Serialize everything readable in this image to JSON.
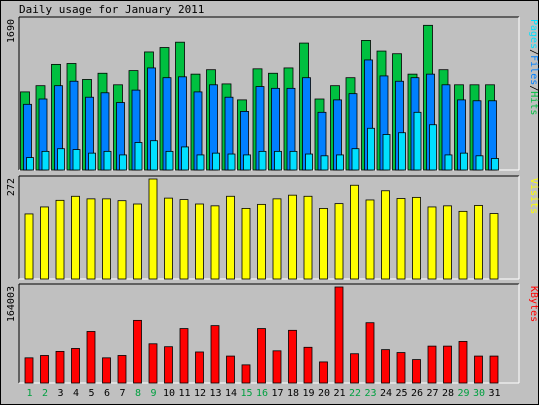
{
  "title": "Daily usage for January 2011",
  "colors": {
    "background": "#c0c0c0",
    "hits": "#00c040",
    "files": "#0080ff",
    "pages": "#00e0ff",
    "visits": "#ffff00",
    "kbytes": "#ff0000",
    "weekend_label": "#00a040"
  },
  "chart_data": [
    {
      "type": "bar",
      "ylabel_max": "1690",
      "ymax": 1690,
      "legend": [
        {
          "text": "Pages",
          "color": "#00e0ff"
        },
        {
          "text": "/",
          "color": "#000000"
        },
        {
          "text": "Files",
          "color": "#0080ff"
        },
        {
          "text": "/",
          "color": "#000000"
        },
        {
          "text": "Hits",
          "color": "#00c040"
        }
      ],
      "categories": [
        "1",
        "2",
        "3",
        "4",
        "5",
        "6",
        "7",
        "8",
        "9",
        "10",
        "11",
        "12",
        "13",
        "14",
        "15",
        "16",
        "17",
        "18",
        "19",
        "20",
        "21",
        "22",
        "23",
        "24",
        "25",
        "26",
        "27",
        "28",
        "29",
        "30",
        "31"
      ],
      "series": [
        {
          "name": "Hits",
          "values": [
            880,
            950,
            1190,
            1200,
            1020,
            1090,
            960,
            1120,
            1330,
            1380,
            1440,
            1080,
            1130,
            970,
            790,
            1140,
            1090,
            1150,
            1430,
            800,
            950,
            1040,
            1460,
            1340,
            1310,
            1080,
            1630,
            1130,
            960,
            960,
            960
          ]
        },
        {
          "name": "Files",
          "values": [
            740,
            800,
            950,
            1000,
            820,
            870,
            760,
            900,
            1150,
            1040,
            1050,
            880,
            960,
            820,
            660,
            940,
            920,
            920,
            1040,
            650,
            790,
            860,
            1240,
            1060,
            1000,
            1040,
            1080,
            960,
            790,
            780,
            780
          ]
        },
        {
          "name": "Pages",
          "values": [
            140,
            210,
            240,
            230,
            190,
            210,
            170,
            310,
            330,
            210,
            260,
            170,
            190,
            180,
            170,
            210,
            210,
            210,
            180,
            160,
            170,
            240,
            470,
            400,
            420,
            650,
            510,
            170,
            190,
            160,
            130
          ]
        }
      ]
    },
    {
      "type": "bar",
      "ylabel_max": "272",
      "ymax": 272,
      "legend": [
        {
          "text": "Visits",
          "color": "#ffff00"
        }
      ],
      "categories": [
        "1",
        "2",
        "3",
        "4",
        "5",
        "6",
        "7",
        "8",
        "9",
        "10",
        "11",
        "12",
        "13",
        "14",
        "15",
        "16",
        "17",
        "18",
        "19",
        "20",
        "21",
        "22",
        "23",
        "24",
        "25",
        "26",
        "27",
        "28",
        "29",
        "30",
        "31"
      ],
      "series": [
        {
          "name": "Visits",
          "values": [
            177,
            196,
            214,
            225,
            218,
            218,
            213,
            204,
            272,
            220,
            216,
            204,
            199,
            225,
            192,
            203,
            218,
            228,
            225,
            192,
            205,
            255,
            215,
            240,
            219,
            222,
            196,
            199,
            184,
            200,
            178
          ]
        }
      ]
    },
    {
      "type": "bar",
      "ylabel_max": "164003",
      "ymax": 164003,
      "legend": [
        {
          "text": "KBytes",
          "color": "#ff0000"
        }
      ],
      "categories": [
        "1",
        "2",
        "3",
        "4",
        "5",
        "6",
        "7",
        "8",
        "9",
        "10",
        "11",
        "12",
        "13",
        "14",
        "15",
        "16",
        "17",
        "18",
        "19",
        "20",
        "21",
        "22",
        "23",
        "24",
        "25",
        "26",
        "27",
        "28",
        "29",
        "30",
        "31"
      ],
      "series": [
        {
          "name": "KBytes",
          "values": [
            43000,
            47000,
            54000,
            59000,
            88000,
            43000,
            47000,
            107000,
            67000,
            62000,
            93000,
            53000,
            98000,
            46000,
            31000,
            93000,
            55000,
            90000,
            61000,
            36000,
            164003,
            50000,
            103000,
            57000,
            52000,
            40000,
            63000,
            63000,
            71000,
            46000,
            46000
          ]
        }
      ]
    }
  ],
  "x_labels": [
    {
      "text": "1",
      "weekend": true
    },
    {
      "text": "2",
      "weekend": true
    },
    {
      "text": "3",
      "weekend": false
    },
    {
      "text": "4",
      "weekend": false
    },
    {
      "text": "5",
      "weekend": false
    },
    {
      "text": "6",
      "weekend": false
    },
    {
      "text": "7",
      "weekend": false
    },
    {
      "text": "8",
      "weekend": true
    },
    {
      "text": "9",
      "weekend": true
    },
    {
      "text": "10",
      "weekend": false
    },
    {
      "text": "11",
      "weekend": false
    },
    {
      "text": "12",
      "weekend": false
    },
    {
      "text": "13",
      "weekend": false
    },
    {
      "text": "14",
      "weekend": false
    },
    {
      "text": "15",
      "weekend": true
    },
    {
      "text": "16",
      "weekend": true
    },
    {
      "text": "17",
      "weekend": false
    },
    {
      "text": "18",
      "weekend": false
    },
    {
      "text": "19",
      "weekend": false
    },
    {
      "text": "20",
      "weekend": false
    },
    {
      "text": "21",
      "weekend": false
    },
    {
      "text": "22",
      "weekend": true
    },
    {
      "text": "23",
      "weekend": true
    },
    {
      "text": "24",
      "weekend": false
    },
    {
      "text": "25",
      "weekend": false
    },
    {
      "text": "26",
      "weekend": false
    },
    {
      "text": "27",
      "weekend": false
    },
    {
      "text": "28",
      "weekend": false
    },
    {
      "text": "29",
      "weekend": true
    },
    {
      "text": "30",
      "weekend": true
    },
    {
      "text": "31",
      "weekend": false
    }
  ]
}
